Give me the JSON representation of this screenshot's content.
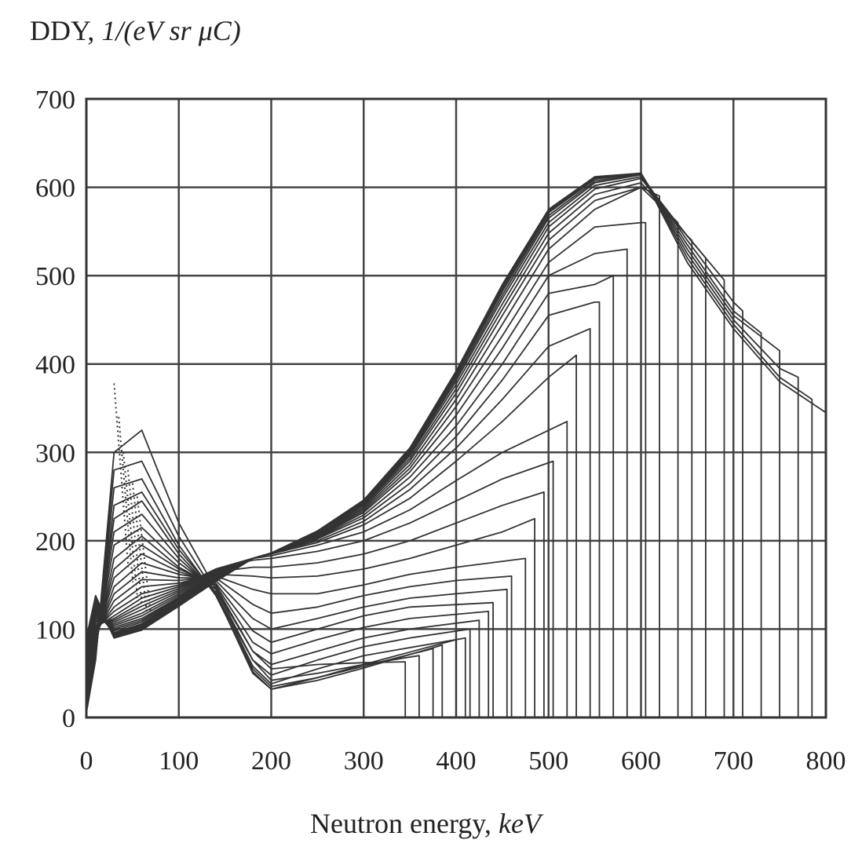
{
  "chart_data": {
    "type": "line",
    "title": "",
    "ylabel_prefix": "DDY, ",
    "ylabel_units": "1/(eV sr μC)",
    "xlabel_prefix": "Neutron energy, ",
    "xlabel_units": "keV",
    "xlim": [
      0,
      800
    ],
    "ylim": [
      0,
      700
    ],
    "xticks": [
      0,
      100,
      200,
      300,
      400,
      500,
      600,
      700,
      800
    ],
    "yticks": [
      0,
      100,
      200,
      300,
      400,
      500,
      600,
      700
    ],
    "xtick_labels": [
      "0",
      "100",
      "200",
      "300",
      "400",
      "500",
      "600",
      "700",
      "800"
    ],
    "ytick_labels": [
      "0",
      "100",
      "200",
      "300",
      "400",
      "500",
      "600",
      "700"
    ],
    "grid": true,
    "legend": "none",
    "line_color": "#333333",
    "series": [
      {
        "x": [
          0,
          10,
          30,
          60,
          100,
          140,
          180,
          200,
          250,
          300,
          345,
          345
        ],
        "y": [
          5,
          65,
          300,
          325,
          220,
          145,
          75,
          55,
          60,
          62,
          63,
          0
        ]
      },
      {
        "x": [
          0,
          10,
          30,
          60,
          100,
          140,
          180,
          200,
          250,
          300,
          360,
          360
        ],
        "y": [
          10,
          68,
          280,
          290,
          205,
          140,
          65,
          42,
          50,
          60,
          70,
          0
        ]
      },
      {
        "x": [
          0,
          10,
          30,
          60,
          100,
          140,
          180,
          200,
          250,
          300,
          375,
          375
        ],
        "y": [
          12,
          70,
          260,
          270,
          195,
          138,
          55,
          35,
          45,
          58,
          78,
          0
        ]
      },
      {
        "x": [
          0,
          10,
          30,
          60,
          100,
          140,
          180,
          200,
          250,
          300,
          385,
          385
        ],
        "y": [
          15,
          72,
          240,
          255,
          190,
          140,
          50,
          32,
          42,
          56,
          82,
          0
        ]
      },
      {
        "x": [
          0,
          10,
          30,
          60,
          100,
          140,
          180,
          200,
          250,
          300,
          400,
          400
        ],
        "y": [
          18,
          75,
          225,
          245,
          185,
          140,
          52,
          32,
          45,
          60,
          88,
          0
        ]
      },
      {
        "x": [
          0,
          10,
          30,
          60,
          100,
          140,
          180,
          200,
          250,
          300,
          410,
          410
        ],
        "y": [
          20,
          78,
          210,
          230,
          180,
          142,
          58,
          38,
          55,
          70,
          90,
          0
        ]
      },
      {
        "x": [
          0,
          10,
          30,
          60,
          100,
          140,
          180,
          200,
          250,
          300,
          350,
          415,
          415
        ],
        "y": [
          22,
          80,
          195,
          215,
          175,
          145,
          65,
          48,
          65,
          80,
          90,
          100,
          0
        ]
      },
      {
        "x": [
          0,
          10,
          30,
          60,
          100,
          140,
          180,
          200,
          250,
          300,
          350,
          425,
          425
        ],
        "y": [
          25,
          82,
          180,
          205,
          170,
          148,
          75,
          60,
          75,
          90,
          100,
          110,
          0
        ]
      },
      {
        "x": [
          0,
          10,
          30,
          60,
          100,
          140,
          180,
          200,
          250,
          300,
          350,
          435,
          435
        ],
        "y": [
          28,
          85,
          168,
          195,
          168,
          150,
          85,
          72,
          88,
          102,
          112,
          120,
          0
        ]
      },
      {
        "x": [
          0,
          10,
          30,
          60,
          100,
          140,
          180,
          200,
          250,
          300,
          350,
          440,
          440
        ],
        "y": [
          30,
          88,
          158,
          185,
          165,
          152,
          98,
          85,
          100,
          115,
          125,
          130,
          0
        ]
      },
      {
        "x": [
          0,
          10,
          30,
          60,
          100,
          140,
          180,
          200,
          250,
          300,
          350,
          400,
          455,
          455
        ],
        "y": [
          32,
          90,
          148,
          175,
          162,
          155,
          112,
          100,
          112,
          125,
          135,
          140,
          145,
          0
        ]
      },
      {
        "x": [
          0,
          10,
          30,
          60,
          100,
          140,
          180,
          200,
          250,
          300,
          350,
          400,
          460,
          460
        ],
        "y": [
          35,
          92,
          140,
          165,
          158,
          158,
          128,
          118,
          125,
          138,
          148,
          155,
          160,
          0
        ]
      },
      {
        "x": [
          0,
          10,
          30,
          60,
          100,
          140,
          180,
          200,
          250,
          300,
          350,
          400,
          475,
          475
        ],
        "y": [
          38,
          95,
          132,
          156,
          155,
          160,
          145,
          140,
          140,
          150,
          162,
          170,
          180,
          0
        ]
      },
      {
        "x": [
          0,
          10,
          30,
          60,
          100,
          140,
          180,
          200,
          250,
          300,
          350,
          400,
          450,
          485,
          485
        ],
        "y": [
          40,
          98,
          125,
          148,
          152,
          162,
          160,
          158,
          160,
          168,
          180,
          195,
          210,
          225,
          0
        ]
      },
      {
        "x": [
          0,
          10,
          30,
          60,
          100,
          140,
          180,
          200,
          250,
          300,
          350,
          400,
          450,
          495,
          495
        ],
        "y": [
          42,
          100,
          120,
          140,
          150,
          165,
          170,
          170,
          175,
          185,
          200,
          220,
          240,
          255,
          0
        ]
      },
      {
        "x": [
          0,
          10,
          30,
          60,
          100,
          140,
          180,
          200,
          250,
          300,
          350,
          400,
          450,
          505,
          505
        ],
        "y": [
          45,
          102,
          115,
          135,
          148,
          168,
          178,
          180,
          188,
          200,
          220,
          245,
          270,
          290,
          0
        ]
      },
      {
        "x": [
          0,
          10,
          30,
          60,
          100,
          140,
          180,
          200,
          250,
          300,
          350,
          400,
          450,
          520,
          520
        ],
        "y": [
          48,
          104,
          112,
          130,
          146,
          168,
          180,
          183,
          195,
          210,
          235,
          268,
          300,
          335,
          0
        ]
      },
      {
        "x": [
          0,
          10,
          30,
          60,
          100,
          140,
          180,
          200,
          250,
          300,
          350,
          400,
          450,
          500,
          530,
          530
        ],
        "y": [
          50,
          106,
          110,
          126,
          144,
          168,
          180,
          185,
          198,
          218,
          248,
          290,
          335,
          385,
          410,
          0
        ]
      },
      {
        "x": [
          0,
          10,
          30,
          60,
          100,
          140,
          180,
          200,
          250,
          300,
          350,
          400,
          450,
          500,
          545,
          545
        ],
        "y": [
          52,
          108,
          108,
          122,
          142,
          167,
          180,
          186,
          200,
          222,
          258,
          305,
          360,
          420,
          440,
          0
        ]
      },
      {
        "x": [
          0,
          10,
          30,
          60,
          100,
          140,
          180,
          200,
          250,
          300,
          350,
          400,
          450,
          500,
          550,
          555,
          555
        ],
        "y": [
          55,
          110,
          106,
          118,
          140,
          166,
          180,
          186,
          202,
          226,
          265,
          318,
          382,
          455,
          470,
          470,
          0
        ]
      },
      {
        "x": [
          0,
          10,
          30,
          60,
          100,
          140,
          180,
          200,
          250,
          300,
          350,
          400,
          450,
          500,
          550,
          570,
          570
        ],
        "y": [
          58,
          112,
          104,
          115,
          138,
          165,
          180,
          186,
          203,
          229,
          272,
          330,
          400,
          480,
          490,
          500,
          0
        ]
      },
      {
        "x": [
          0,
          10,
          30,
          60,
          100,
          140,
          180,
          200,
          250,
          300,
          350,
          400,
          450,
          500,
          550,
          585,
          585
        ],
        "y": [
          60,
          114,
          102,
          112,
          136,
          164,
          180,
          186,
          204,
          232,
          278,
          342,
          418,
          500,
          525,
          530,
          0
        ]
      },
      {
        "x": [
          0,
          10,
          30,
          60,
          100,
          140,
          180,
          200,
          250,
          300,
          350,
          400,
          450,
          500,
          550,
          600,
          605,
          605
        ],
        "y": [
          62,
          116,
          100,
          110,
          135,
          163,
          180,
          186,
          205,
          234,
          282,
          352,
          432,
          515,
          555,
          560,
          560,
          0
        ]
      },
      {
        "x": [
          0,
          10,
          30,
          60,
          100,
          140,
          180,
          200,
          250,
          300,
          350,
          400,
          450,
          500,
          550,
          600,
          620,
          620
        ],
        "y": [
          65,
          118,
          98,
          108,
          134,
          162,
          180,
          186,
          206,
          236,
          286,
          360,
          445,
          530,
          575,
          600,
          590,
          0
        ]
      },
      {
        "x": [
          0,
          10,
          30,
          60,
          100,
          140,
          180,
          200,
          250,
          300,
          350,
          400,
          450,
          500,
          550,
          600,
          640,
          640
        ],
        "y": [
          68,
          120,
          96,
          106,
          133,
          161,
          180,
          186,
          207,
          238,
          290,
          367,
          455,
          540,
          585,
          600,
          560,
          0
        ]
      },
      {
        "x": [
          0,
          10,
          30,
          60,
          100,
          140,
          180,
          200,
          250,
          300,
          350,
          400,
          450,
          500,
          550,
          600,
          650,
          655,
          655
        ],
        "y": [
          70,
          122,
          95,
          105,
          132,
          160,
          180,
          186,
          208,
          240,
          293,
          372,
          462,
          548,
          592,
          605,
          545,
          540,
          0
        ]
      },
      {
        "x": [
          0,
          10,
          30,
          60,
          100,
          140,
          180,
          200,
          250,
          300,
          350,
          400,
          450,
          500,
          550,
          600,
          650,
          670,
          670
        ],
        "y": [
          72,
          124,
          94,
          104,
          131,
          159,
          180,
          186,
          209,
          241,
          296,
          377,
          468,
          555,
          598,
          610,
          545,
          520,
          0
        ]
      },
      {
        "x": [
          0,
          10,
          30,
          60,
          100,
          140,
          180,
          200,
          250,
          300,
          350,
          400,
          450,
          500,
          550,
          600,
          650,
          690,
          690
        ],
        "y": [
          75,
          126,
          93,
          103,
          130,
          158,
          180,
          186,
          210,
          242,
          298,
          381,
          474,
          560,
          602,
          612,
          545,
          495,
          0
        ]
      },
      {
        "x": [
          0,
          10,
          30,
          60,
          100,
          140,
          180,
          200,
          250,
          300,
          350,
          400,
          450,
          500,
          550,
          600,
          650,
          700,
          710,
          710
        ],
        "y": [
          78,
          128,
          92,
          102,
          129,
          157,
          180,
          186,
          210,
          243,
          300,
          384,
          478,
          565,
          605,
          614,
          540,
          470,
          460,
          0
        ]
      },
      {
        "x": [
          0,
          10,
          30,
          60,
          100,
          140,
          180,
          200,
          250,
          300,
          350,
          400,
          450,
          500,
          550,
          600,
          650,
          700,
          730,
          730
        ],
        "y": [
          80,
          130,
          92,
          101,
          128,
          156,
          180,
          186,
          210,
          244,
          302,
          387,
          482,
          568,
          607,
          615,
          535,
          460,
          435,
          0
        ]
      },
      {
        "x": [
          0,
          10,
          30,
          60,
          100,
          140,
          180,
          200,
          250,
          300,
          350,
          400,
          450,
          500,
          550,
          600,
          650,
          700,
          750,
          750
        ],
        "y": [
          82,
          132,
          91,
          100,
          128,
          155,
          180,
          186,
          211,
          245,
          303,
          389,
          485,
          571,
          609,
          616,
          530,
          455,
          415,
          0
        ]
      },
      {
        "x": [
          0,
          10,
          30,
          60,
          100,
          140,
          180,
          200,
          250,
          300,
          350,
          400,
          450,
          500,
          550,
          600,
          650,
          700,
          750,
          770,
          770
        ],
        "y": [
          85,
          134,
          91,
          100,
          127,
          155,
          180,
          186,
          211,
          245,
          304,
          390,
          487,
          573,
          610,
          616,
          525,
          450,
          395,
          385,
          0
        ]
      },
      {
        "x": [
          0,
          10,
          30,
          60,
          100,
          140,
          180,
          200,
          250,
          300,
          350,
          400,
          450,
          500,
          550,
          600,
          650,
          700,
          750,
          785,
          785
        ],
        "y": [
          88,
          136,
          90,
          99,
          127,
          154,
          180,
          186,
          211,
          246,
          305,
          391,
          489,
          574,
          611,
          616,
          520,
          445,
          385,
          360,
          0
        ]
      },
      {
        "x": [
          0,
          10,
          30,
          60,
          100,
          140,
          180,
          200,
          250,
          300,
          350,
          400,
          450,
          500,
          550,
          600,
          650,
          700,
          750,
          800,
          800
        ],
        "y": [
          90,
          138,
          90,
          99,
          126,
          154,
          180,
          186,
          211,
          246,
          305,
          392,
          490,
          575,
          612,
          616,
          515,
          440,
          380,
          345,
          0
        ]
      }
    ],
    "dotted_tips": {
      "x": [
        30,
        35,
        40,
        45,
        50,
        55
      ],
      "y": [
        378,
        340,
        300,
        280,
        265,
        250
      ]
    }
  }
}
